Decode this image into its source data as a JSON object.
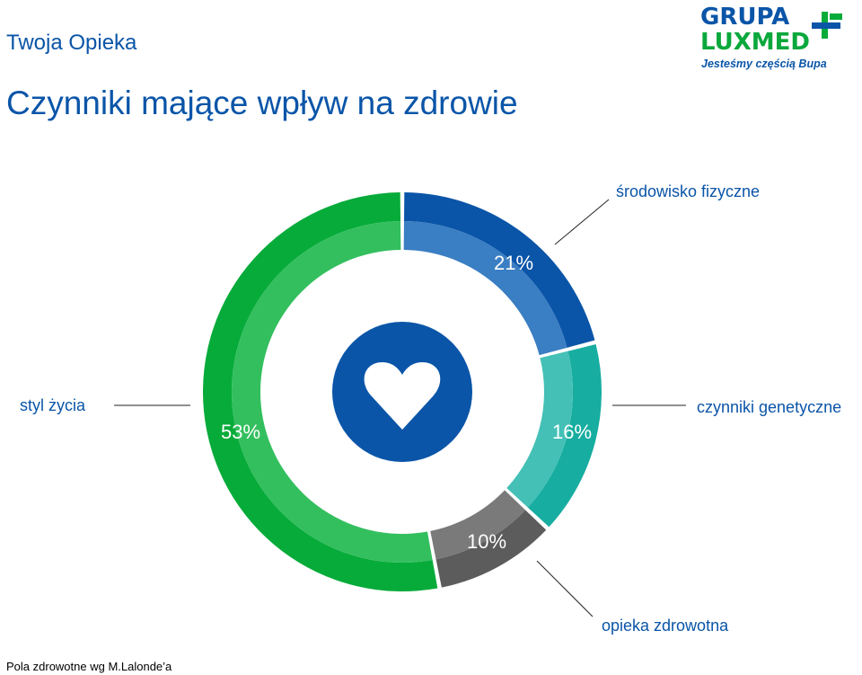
{
  "header": {
    "section": "Twoja Opieka",
    "title": "Czynniki mające wpływ na zdrowie"
  },
  "logo": {
    "line1": "GRUPA",
    "line2": "LUXMED",
    "tagline": "Jesteśmy częścią Bupa"
  },
  "chart_data": {
    "type": "pie",
    "variant": "donut",
    "center_icon": "heart-icon",
    "slices": [
      {
        "label": "środowisko fizyczne",
        "value": 21,
        "value_label": "21%",
        "outer_color": "#0a55a8",
        "inner_color": "#3a7ec3"
      },
      {
        "label": "czynniki genetyczne",
        "value": 16,
        "value_label": "16%",
        "outer_color": "#17ada0",
        "inner_color": "#44c0b6"
      },
      {
        "label": "opieka zdrowotna",
        "value": 10,
        "value_label": "10%",
        "outer_color": "#5c5c5c",
        "inner_color": "#7a7a7a"
      },
      {
        "label": "styl życia",
        "value": 53,
        "value_label": "53%",
        "outer_color": "#07ab3a",
        "inner_color": "#33bf5e"
      }
    ]
  },
  "footer": {
    "source": "Pola zdrowotne wg M.Lalonde’a"
  }
}
